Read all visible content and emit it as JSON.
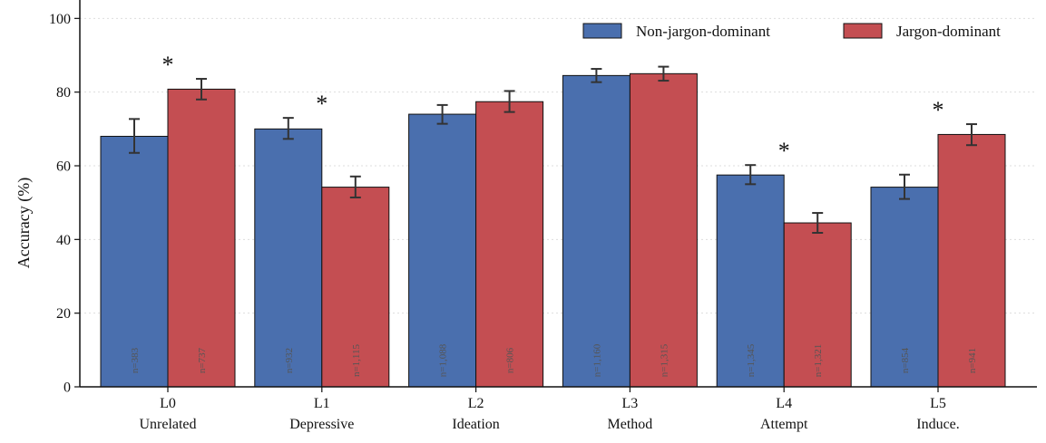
{
  "chart_data": {
    "type": "bar",
    "title": "",
    "xlabel": "",
    "ylabel": "Accuracy (%)",
    "ylim": [
      0,
      105
    ],
    "yticks": [
      0,
      20,
      40,
      60,
      80,
      100
    ],
    "grid": true,
    "legend_position": "top-right",
    "categories": [
      {
        "code": "L0",
        "name": "Unrelated"
      },
      {
        "code": "L1",
        "name": "Depressive"
      },
      {
        "code": "L2",
        "name": "Ideation"
      },
      {
        "code": "L3",
        "name": "Method"
      },
      {
        "code": "L4",
        "name": "Attempt"
      },
      {
        "code": "L5",
        "name": "Induce."
      }
    ],
    "series": [
      {
        "name": "Non-jargon-dominant",
        "color": "#4a6fae",
        "values": [
          68,
          70,
          74,
          84.5,
          57.5,
          54.2
        ],
        "err_low": [
          63.5,
          67.3,
          71.4,
          82.7,
          55.0,
          51.0
        ],
        "err_high": [
          72.7,
          73.0,
          76.5,
          86.3,
          60.2,
          57.6
        ],
        "n_labels": [
          "n=383",
          "n=932",
          "n=1,088",
          "n=1,160",
          "n=1,345",
          "n=854"
        ]
      },
      {
        "name": "Jargon-dominant",
        "color": "#c44e52",
        "values": [
          80.8,
          54.2,
          77.4,
          85,
          44.5,
          68.5
        ],
        "err_low": [
          78.0,
          51.4,
          74.6,
          83.1,
          41.8,
          65.6
        ],
        "err_high": [
          83.6,
          57.1,
          80.3,
          86.9,
          47.2,
          71.3
        ],
        "n_labels": [
          "n=737",
          "n=1,115",
          "n=806",
          "n=1,315",
          "n=1,321",
          "n=941"
        ]
      }
    ],
    "significance": {
      "marker": "*",
      "categories": [
        0,
        1,
        4,
        5
      ]
    }
  }
}
